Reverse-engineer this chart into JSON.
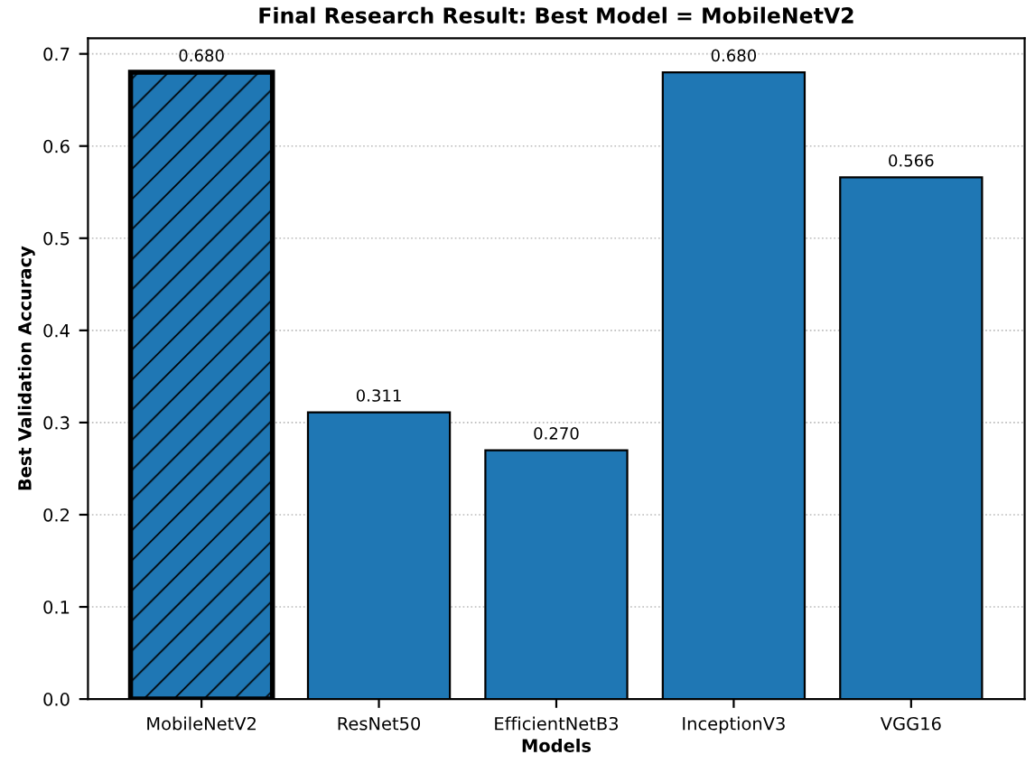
{
  "chart_data": {
    "type": "bar",
    "title": "Final Research Result: Best Model = MobileNetV2",
    "xlabel": "Models",
    "ylabel": "Best Validation Accuracy",
    "categories": [
      "MobileNetV2",
      "ResNet50",
      "EfficientNetB3",
      "InceptionV3",
      "VGG16"
    ],
    "values": [
      0.68,
      0.311,
      0.27,
      0.68,
      0.566
    ],
    "value_labels": [
      "0.680",
      "0.311",
      "0.270",
      "0.680",
      "0.566"
    ],
    "color": "#1f77b4",
    "ylim": [
      0,
      0.717
    ],
    "yticks": [
      {
        "value": 0,
        "label": "0.0"
      },
      0.1,
      0.2,
      0.3,
      0.4,
      0.5,
      0.6,
      0.7
    ],
    "grid": "y"
  }
}
